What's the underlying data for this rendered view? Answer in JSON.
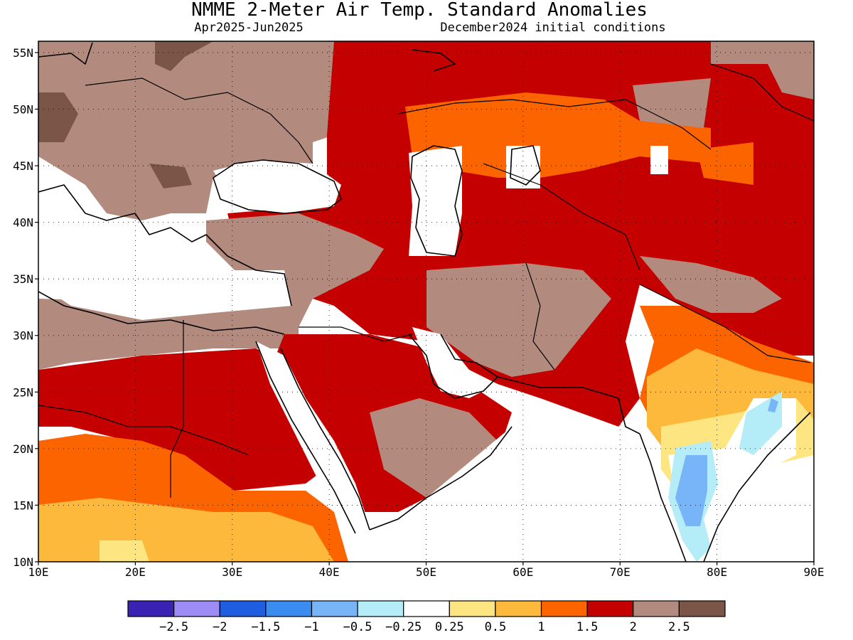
{
  "header": {
    "title": "NMME 2-Meter Air Temp. Standard Anomalies",
    "period": "Apr2025-Jun2025",
    "initial_conditions": "December2024 initial conditions"
  },
  "map": {
    "region": {
      "lon_min": 10,
      "lon_max": 90,
      "lat_min": 10,
      "lat_max": 56
    },
    "lat_ticks": [
      {
        "value": 10,
        "label": "10N"
      },
      {
        "value": 15,
        "label": "15N"
      },
      {
        "value": 20,
        "label": "20N"
      },
      {
        "value": 25,
        "label": "25N"
      },
      {
        "value": 30,
        "label": "30N"
      },
      {
        "value": 35,
        "label": "35N"
      },
      {
        "value": 40,
        "label": "40N"
      },
      {
        "value": 45,
        "label": "45N"
      },
      {
        "value": 50,
        "label": "50N"
      },
      {
        "value": 55,
        "label": "55N"
      }
    ],
    "lon_ticks": [
      {
        "value": 10,
        "label": "10E"
      },
      {
        "value": 20,
        "label": "20E"
      },
      {
        "value": 30,
        "label": "30E"
      },
      {
        "value": 40,
        "label": "40E"
      },
      {
        "value": 50,
        "label": "50E"
      },
      {
        "value": 60,
        "label": "60E"
      },
      {
        "value": 70,
        "label": "70E"
      },
      {
        "value": 80,
        "label": "80E"
      },
      {
        "value": 90,
        "label": "90E"
      }
    ],
    "gridlines": "dotted"
  },
  "colorbar": {
    "colors": [
      "#3a22b4",
      "#9d8cf5",
      "#1f5ee0",
      "#3a8cf0",
      "#78b4f8",
      "#b4ecf8",
      "#ffffff",
      "#fde682",
      "#fdb93c",
      "#fc6400",
      "#c40000",
      "#b38a7e",
      "#7a5548"
    ],
    "labels": [
      "-2.5",
      "-2",
      "-1.5",
      "-1",
      "-0.5",
      "-0.25",
      "0.25",
      "0.5",
      "1",
      "1.5",
      "2",
      "2.5"
    ]
  }
}
